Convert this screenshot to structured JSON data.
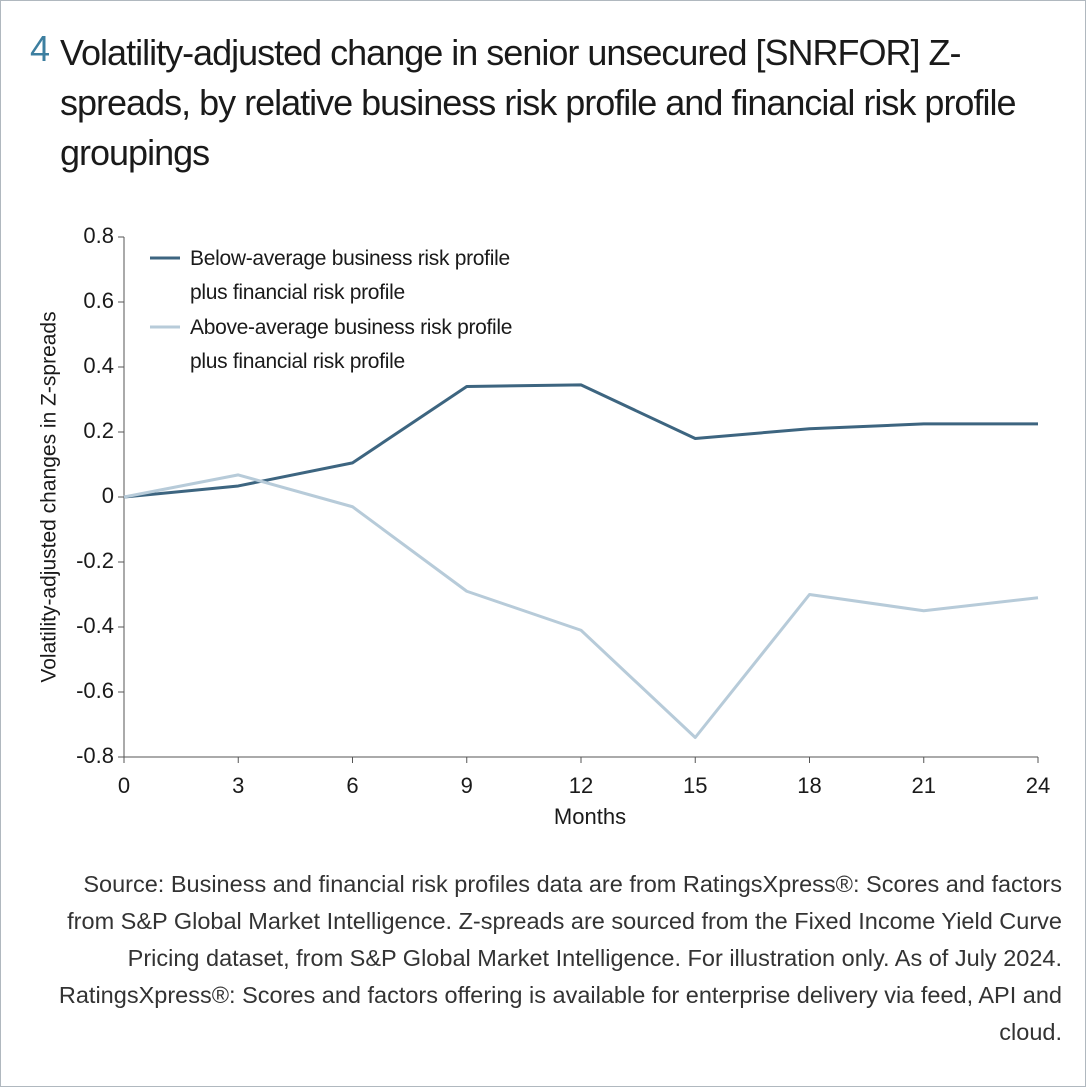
{
  "chart_data": {
    "type": "line",
    "number": "4",
    "title": "Volatility-adjusted change in senior unsecured [SNRFOR] Z-spreads, by relative business risk profile and financial risk profile groupings",
    "xlabel": "Months",
    "ylabel": "Volatility-adjusted changes in Z-spreads",
    "x": [
      0,
      3,
      6,
      9,
      12,
      15,
      18,
      21,
      24
    ],
    "xlim": [
      0,
      24
    ],
    "xticks": [
      0,
      3,
      6,
      9,
      12,
      15,
      18,
      21,
      24
    ],
    "ylim": [
      -0.8,
      0.8
    ],
    "yticks": [
      0.8,
      0.6,
      0.4,
      0.2,
      0,
      -0.2,
      -0.4,
      -0.6,
      -0.8
    ],
    "legend": "top-left",
    "series": [
      {
        "name": "Below-average business risk profile plus financial risk profile",
        "color": "#3d6580",
        "values": [
          0,
          0.034,
          0.105,
          0.34,
          0.345,
          0.18,
          0.21,
          0.225,
          0.225
        ]
      },
      {
        "name": "Above-average business risk profile plus financial risk profile",
        "color": "#b7cbd9",
        "values": [
          0,
          0.068,
          -0.03,
          -0.29,
          -0.41,
          -0.74,
          -0.3,
          -0.35,
          -0.31
        ]
      }
    ],
    "source": "Source: Business and financial risk profiles data are from RatingsXpress®: Scores and factors from S&P Global Market Intelligence. Z-spreads are sourced from the Fixed Income Yield Curve Pricing dataset, from S&P Global Market Intelligence. For illustration only. As of July 2024. RatingsXpress®: Scores and factors offering is available for enterprise delivery via feed, API and cloud."
  }
}
